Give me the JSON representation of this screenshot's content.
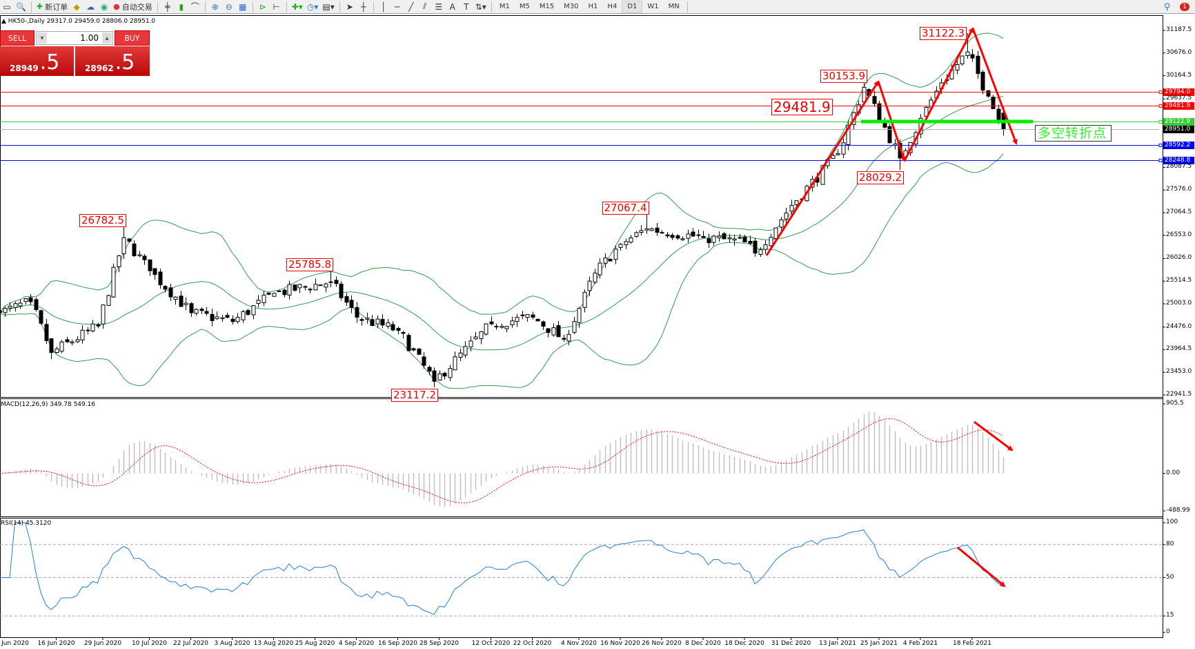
{
  "toolbar": {
    "new_order_label": "新订单",
    "auto_trade_label": "自动交易",
    "timeframes": [
      "M1",
      "M5",
      "M15",
      "M30",
      "H1",
      "H4",
      "D1",
      "W1",
      "MN"
    ],
    "active_timeframe": "D1",
    "notification_count": "1"
  },
  "symbol_header": {
    "symbol": "HK50-,Daily",
    "ohlc": "29317.0 29459.0 28806.0 28951.0"
  },
  "trade_panel": {
    "sell_label": "SELL",
    "buy_label": "BUY",
    "lot": "1.00",
    "sell_price_main": "28949",
    "sell_price_frac": ".5",
    "buy_price_main": "28962",
    "buy_price_frac": ".5"
  },
  "price_axis": {
    "max": 31187.5,
    "min": 22941.5,
    "ticks": [
      "31187.5",
      "30676.0",
      "30164.5",
      "29637.5",
      "28087.5",
      "27576.0",
      "27064.5",
      "26553.0",
      "26026.0",
      "25514.5",
      "25003.0",
      "24476.0",
      "23964.5",
      "23453.0",
      "22941.5"
    ]
  },
  "levels": [
    {
      "price": 29794.0,
      "label": "29794.0",
      "color": "#ff0000"
    },
    {
      "price": 29481.9,
      "label": "29481.9",
      "color": "#ff0000"
    },
    {
      "price": 29122.9,
      "label": "29122.9",
      "color": "#33cc33"
    },
    {
      "price": 28951.0,
      "label": "28951.0",
      "color": "#000000"
    },
    {
      "price": 28592.2,
      "label": "28592.2",
      "color": "#0000ff"
    },
    {
      "price": 28248.8,
      "label": "28248.8",
      "color": "#0000ff"
    }
  ],
  "annotations": [
    {
      "text": "26782.5",
      "date": "2020-07-03"
    },
    {
      "text": "25785.8",
      "date": "2020-08-28"
    },
    {
      "text": "23117.2",
      "date": "2020-09-25"
    },
    {
      "text": "27067.4",
      "date": "2020-11-23"
    },
    {
      "text": "30153.9",
      "date": "2021-01-20"
    },
    {
      "text": "29481.9",
      "date": "2021-01-14"
    },
    {
      "text": "28029.2",
      "date": "2021-01-29"
    },
    {
      "text": "31122.3",
      "date": "2021-02-17"
    }
  ],
  "turning_point_label": "多空转折点",
  "colors": {
    "bull": "#ffffff",
    "bear": "#000000",
    "bands": "#2e9e4e",
    "annotation": "#ff0000",
    "support_line": "#00ee00",
    "macd_hist": "#c0c0c0",
    "macd_signal": "#ff0000",
    "rsi": "#1e7fe0"
  },
  "chart_data": {
    "type": "candlestick",
    "symbol": "HK50-",
    "timeframe": "Daily",
    "start": "2020-06-01",
    "end": "2021-02-26",
    "price_path": [
      {
        "date": "2020-06-01",
        "close": 24800
      },
      {
        "date": "2020-06-09",
        "close": 25050
      },
      {
        "date": "2020-06-15",
        "close": 23900,
        "low": 23750
      },
      {
        "date": "2020-06-26",
        "close": 24500
      },
      {
        "date": "2020-07-03",
        "close": 26500,
        "high": 26782.5
      },
      {
        "date": "2020-07-10",
        "close": 25750
      },
      {
        "date": "2020-07-22",
        "close": 24800
      },
      {
        "date": "2020-08-03",
        "close": 24600
      },
      {
        "date": "2020-08-13",
        "close": 25240
      },
      {
        "date": "2020-08-28",
        "close": 25500,
        "high": 25785.8
      },
      {
        "date": "2020-09-04",
        "close": 24700
      },
      {
        "date": "2020-09-16",
        "close": 24400
      },
      {
        "date": "2020-09-25",
        "close": 23250,
        "low": 23117.2
      },
      {
        "date": "2020-10-12",
        "close": 24550
      },
      {
        "date": "2020-10-22",
        "close": 24700
      },
      {
        "date": "2020-10-30",
        "close": 24200
      },
      {
        "date": "2020-11-04",
        "close": 24900
      },
      {
        "date": "2020-11-09",
        "close": 25700
      },
      {
        "date": "2020-11-16",
        "close": 26350
      },
      {
        "date": "2020-11-23",
        "close": 26700,
        "high": 27067.4
      },
      {
        "date": "2020-12-08",
        "close": 26500
      },
      {
        "date": "2020-12-18",
        "close": 26400
      },
      {
        "date": "2020-12-22",
        "close": 26150
      },
      {
        "date": "2020-12-31",
        "close": 27230
      },
      {
        "date": "2021-01-13",
        "close": 28400
      },
      {
        "date": "2021-01-20",
        "close": 29900,
        "high": 30153.9
      },
      {
        "date": "2021-01-29",
        "close": 28300,
        "low": 28029.2
      },
      {
        "date": "2021-02-04",
        "close": 29200
      },
      {
        "date": "2021-02-10",
        "close": 30000
      },
      {
        "date": "2021-02-17",
        "close": 30700,
        "high": 31122.3
      },
      {
        "date": "2021-02-23",
        "close": 29700
      },
      {
        "date": "2021-02-26",
        "close": 28951,
        "high": 29459,
        "low": 28806,
        "open": 29317
      }
    ],
    "date_ticks": [
      "Jun 2020",
      "16 Jun 2020",
      "29 Jun 2020",
      "10 Jul 2020",
      "22 Jul 2020",
      "3 Aug 2020",
      "13 Aug 2020",
      "25 Aug 2020",
      "4 Sep 2020",
      "16 Sep 2020",
      "28 Sep 2020",
      "12 Oct 2020",
      "22 Oct 2020",
      "4 Nov 2020",
      "16 Nov 2020",
      "26 Nov 2020",
      "8 Dec 2020",
      "18 Dec 2020",
      "31 Dec 2020",
      "13 Jan 2021",
      "25 Jan 2021",
      "4 Feb 2021",
      "18 Feb 2021"
    ],
    "indicators": {
      "bollinger": {
        "period": 20,
        "deviation": 2
      },
      "macd": {
        "label": "MACD(12,26,9) 349.78 549.16",
        "max": 905.5,
        "min": -488.99,
        "ticks": [
          "905.5",
          "0.00",
          "-488.99"
        ]
      },
      "rsi": {
        "label": "RSI(14) 45.3120",
        "levels": [
          80,
          50,
          15
        ],
        "ticks": [
          "100",
          "80",
          "50",
          "15",
          "0"
        ]
      }
    }
  }
}
